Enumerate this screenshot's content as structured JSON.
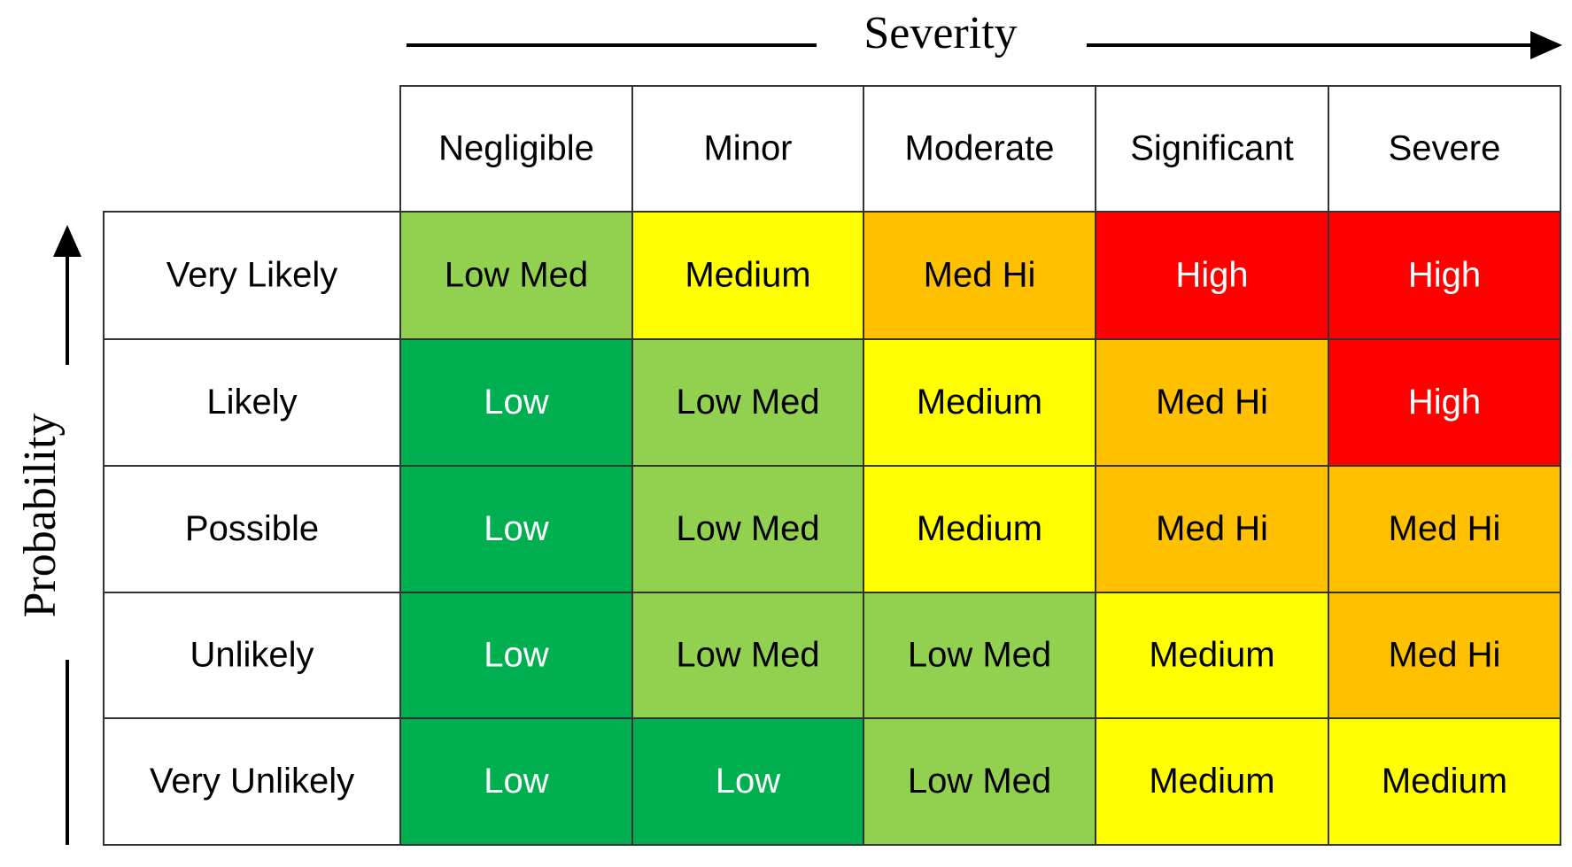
{
  "x_axis_title": "Severity",
  "y_axis_title": "Probability",
  "columns": [
    "Negligible",
    "Minor",
    "Moderate",
    "Significant",
    "Severe"
  ],
  "rows": [
    {
      "label": "Very Likely",
      "cells": [
        "Low Med",
        "Medium",
        "Med Hi",
        "High",
        "High"
      ]
    },
    {
      "label": "Likely",
      "cells": [
        "Low",
        "Low Med",
        "Medium",
        "Med Hi",
        "High"
      ]
    },
    {
      "label": "Possible",
      "cells": [
        "Low",
        "Low Med",
        "Medium",
        "Med Hi",
        "Med Hi"
      ]
    },
    {
      "label": "Unlikely",
      "cells": [
        "Low",
        "Low Med",
        "Low Med",
        "Medium",
        "Med Hi"
      ]
    },
    {
      "label": "Very Unlikely",
      "cells": [
        "Low",
        "Low",
        "Low Med",
        "Medium",
        "Medium"
      ]
    }
  ],
  "styles": {
    "Low": {
      "fill": "#00b050",
      "text": "#ffffff"
    },
    "Low Med": {
      "fill": "#92d050",
      "text": "#000000"
    },
    "Medium": {
      "fill": "#ffff00",
      "text": "#000000"
    },
    "Med Hi": {
      "fill": "#ffc000",
      "text": "#000000"
    },
    "High": {
      "fill": "#ff0000",
      "text": "#ffffff"
    }
  }
}
